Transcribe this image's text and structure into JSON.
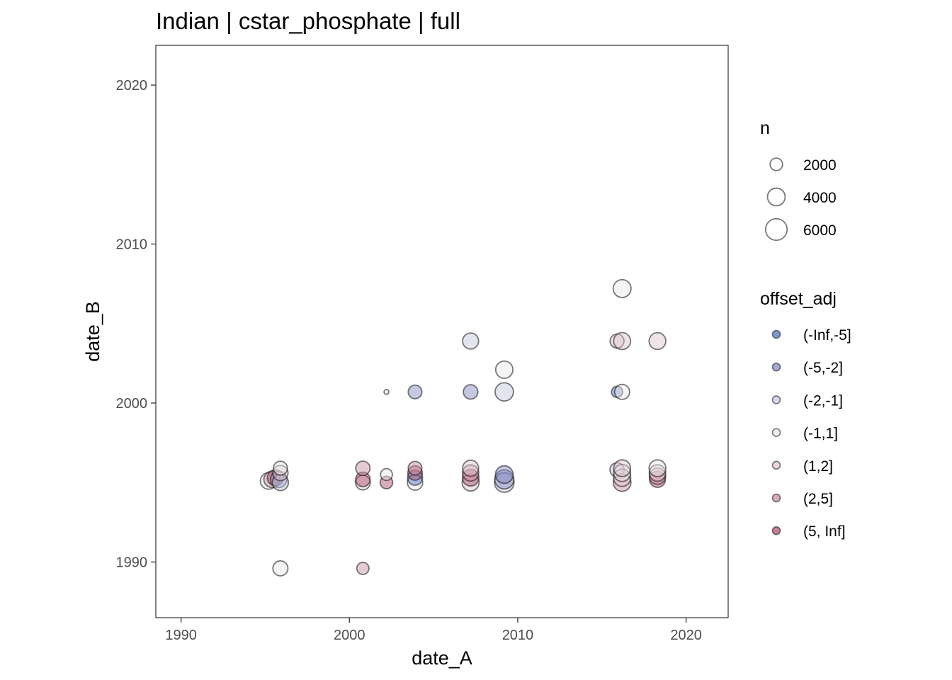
{
  "chart_data": {
    "type": "scatter",
    "title": "Indian | cstar_phosphate | full",
    "xlabel": "date_A",
    "ylabel": "date_B",
    "xlim": [
      1988.5,
      2022.5
    ],
    "ylim": [
      1986.5,
      2022.5
    ],
    "x_ticks": [
      1990,
      2000,
      2010,
      2020
    ],
    "y_ticks": [
      1990,
      2000,
      2010,
      2020
    ],
    "grid": false,
    "legend_position": "right",
    "size_legend": {
      "title": "n",
      "entries": [
        {
          "label": "2000",
          "value": 2000
        },
        {
          "label": "4000",
          "value": 4000
        },
        {
          "label": "6000",
          "value": 6000
        }
      ]
    },
    "color_legend": {
      "title": "offset_adj",
      "entries": [
        {
          "label": "(-Inf,-5]",
          "color": "#4a6bbd"
        },
        {
          "label": "(-5,-2]",
          "color": "#7f84bf"
        },
        {
          "label": "(-2,-1]",
          "color": "#c3c4dd"
        },
        {
          "label": "(-1,1]",
          "color": "#e6e6e6"
        },
        {
          "label": "(1,2]",
          "color": "#dcc3cc"
        },
        {
          "label": "(2,5]",
          "color": "#c7899c"
        },
        {
          "label": "(5, Inf]",
          "color": "#a94866"
        }
      ]
    },
    "points": [
      {
        "x": 1995.2,
        "y": 1995.1,
        "n": 3500,
        "cat": "(-1,1]"
      },
      {
        "x": 1995.4,
        "y": 1995.2,
        "n": 3400,
        "cat": "(2,5]"
      },
      {
        "x": 1995.6,
        "y": 1995.3,
        "n": 3300,
        "cat": "(5, Inf]"
      },
      {
        "x": 1995.8,
        "y": 1995.2,
        "n": 3500,
        "cat": "(-5,-2]"
      },
      {
        "x": 1995.9,
        "y": 1995.0,
        "n": 3300,
        "cat": "(-2,-1]"
      },
      {
        "x": 1995.9,
        "y": 1995.6,
        "n": 3000,
        "cat": "(1,2]"
      },
      {
        "x": 1995.9,
        "y": 1995.9,
        "n": 2500,
        "cat": "(-1,1]"
      },
      {
        "x": 1995.9,
        "y": 1989.6,
        "n": 2900,
        "cat": "(-1,1]"
      },
      {
        "x": 2000.8,
        "y": 1995.0,
        "n": 2800,
        "cat": "(1,2]"
      },
      {
        "x": 2000.8,
        "y": 1995.2,
        "n": 2700,
        "cat": "(5, Inf]"
      },
      {
        "x": 2000.8,
        "y": 1995.9,
        "n": 2600,
        "cat": "(2,5]"
      },
      {
        "x": 2000.8,
        "y": 1989.6,
        "n": 1900,
        "cat": "(2,5]"
      },
      {
        "x": 2002.2,
        "y": 1995.0,
        "n": 2000,
        "cat": "(5, Inf]"
      },
      {
        "x": 2002.2,
        "y": 1995.5,
        "n": 1800,
        "cat": "(-1,1]"
      },
      {
        "x": 2002.2,
        "y": 2000.7,
        "n": 300,
        "cat": "(-1,1]"
      },
      {
        "x": 2003.9,
        "y": 1995.0,
        "n": 3000,
        "cat": "(-1,1]"
      },
      {
        "x": 2003.9,
        "y": 1995.3,
        "n": 2900,
        "cat": "(-Inf,-5]"
      },
      {
        "x": 2003.9,
        "y": 1995.6,
        "n": 2700,
        "cat": "(5, Inf]"
      },
      {
        "x": 2003.9,
        "y": 1995.9,
        "n": 2400,
        "cat": "(2,5]"
      },
      {
        "x": 2003.9,
        "y": 2000.7,
        "n": 2400,
        "cat": "(-5,-2]"
      },
      {
        "x": 2007.2,
        "y": 1995.0,
        "n": 3700,
        "cat": "(1,2]"
      },
      {
        "x": 2007.2,
        "y": 1995.3,
        "n": 3500,
        "cat": "(5, Inf]"
      },
      {
        "x": 2007.2,
        "y": 1995.6,
        "n": 3400,
        "cat": "(2,5]"
      },
      {
        "x": 2007.2,
        "y": 1995.9,
        "n": 3300,
        "cat": "(1,2]"
      },
      {
        "x": 2007.2,
        "y": 2000.7,
        "n": 2700,
        "cat": "(-5,-2]"
      },
      {
        "x": 2007.2,
        "y": 2003.9,
        "n": 3300,
        "cat": "(-2,-1]"
      },
      {
        "x": 2009.2,
        "y": 1995.0,
        "n": 4900,
        "cat": "(-2,-1]"
      },
      {
        "x": 2009.2,
        "y": 1995.2,
        "n": 4700,
        "cat": "(-5,-2]"
      },
      {
        "x": 2009.2,
        "y": 1995.5,
        "n": 4000,
        "cat": "(-5,-2]"
      },
      {
        "x": 2009.2,
        "y": 2000.7,
        "n": 4300,
        "cat": "(-2,-1]"
      },
      {
        "x": 2009.2,
        "y": 2002.1,
        "n": 3800,
        "cat": "(-1,1]"
      },
      {
        "x": 2015.9,
        "y": 2000.7,
        "n": 1600,
        "cat": "(-Inf,-5]"
      },
      {
        "x": 2015.9,
        "y": 2003.9,
        "n": 2500,
        "cat": "(1,2]"
      },
      {
        "x": 2015.9,
        "y": 1995.8,
        "n": 2600,
        "cat": "(-2,-1]"
      },
      {
        "x": 2016.2,
        "y": 1995.0,
        "n": 4000,
        "cat": "(2,5]"
      },
      {
        "x": 2016.2,
        "y": 1995.3,
        "n": 3800,
        "cat": "(1,2]"
      },
      {
        "x": 2016.2,
        "y": 1995.6,
        "n": 3700,
        "cat": "(-1,1]"
      },
      {
        "x": 2016.2,
        "y": 1995.9,
        "n": 3600,
        "cat": "(1,2]"
      },
      {
        "x": 2016.2,
        "y": 2000.7,
        "n": 2900,
        "cat": "(-1,1]"
      },
      {
        "x": 2016.2,
        "y": 2003.9,
        "n": 3700,
        "cat": "(1,2]"
      },
      {
        "x": 2016.2,
        "y": 2007.2,
        "n": 4100,
        "cat": "(-1,1]"
      },
      {
        "x": 2018.3,
        "y": 1995.2,
        "n": 3300,
        "cat": "(5, Inf]"
      },
      {
        "x": 2018.3,
        "y": 1995.4,
        "n": 3400,
        "cat": "(2,5]"
      },
      {
        "x": 2018.3,
        "y": 1995.6,
        "n": 3500,
        "cat": "(1,2]"
      },
      {
        "x": 2018.3,
        "y": 1995.9,
        "n": 3600,
        "cat": "(-1,1]"
      },
      {
        "x": 2018.3,
        "y": 2003.9,
        "n": 3600,
        "cat": "(1,2]"
      }
    ]
  }
}
